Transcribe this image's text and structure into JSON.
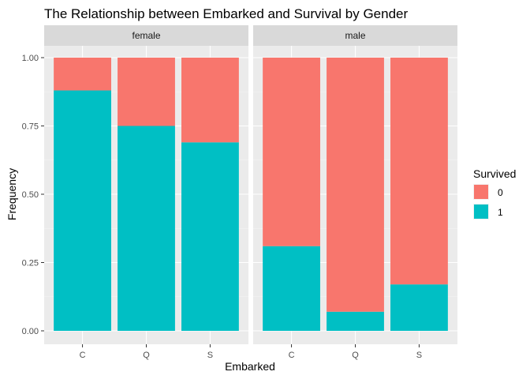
{
  "chart_data": {
    "type": "bar",
    "stacked": true,
    "title": "The Relationship between Embarked and Survival by Gender",
    "xlabel": "Embarked",
    "ylabel": "Frequency",
    "ylim": [
      0,
      1
    ],
    "yticks": [
      0,
      0.25,
      0.5,
      0.75,
      1
    ],
    "ytick_labels": [
      "0.00",
      "0.25",
      "0.50",
      "0.75",
      "1.00"
    ],
    "categories": [
      "C",
      "Q",
      "S"
    ],
    "legend": {
      "title": "Survived",
      "placement": "right",
      "entries": [
        {
          "label": "0",
          "color": "#F8766D"
        },
        {
          "label": "1",
          "color": "#00BFC4"
        }
      ]
    },
    "facets": [
      {
        "label": "female",
        "series": [
          {
            "name": "0",
            "color": "#F8766D",
            "values": [
              0.12,
              0.25,
              0.31
            ]
          },
          {
            "name": "1",
            "color": "#00BFC4",
            "values": [
              0.88,
              0.75,
              0.69
            ]
          }
        ]
      },
      {
        "label": "male",
        "series": [
          {
            "name": "0",
            "color": "#F8766D",
            "values": [
              0.69,
              0.93,
              0.83
            ]
          },
          {
            "name": "1",
            "color": "#00BFC4",
            "values": [
              0.31,
              0.07,
              0.17
            ]
          }
        ]
      }
    ]
  }
}
